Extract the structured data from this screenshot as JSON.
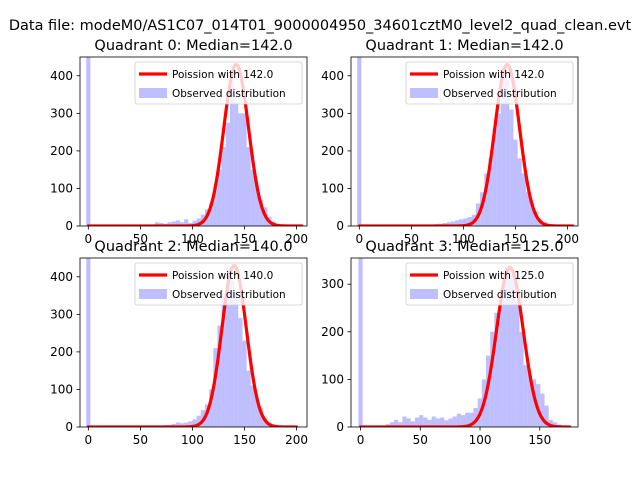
{
  "figure_title": "Data file: modeM0/AS1C07_014T01_9000004950_34601cztM0_level2_quad_clean.evt",
  "colors": {
    "curve": "#ff0000",
    "bars": "#7f7fff",
    "edge_bar": "#7f7fff"
  },
  "chart_data": [
    {
      "type": "bar",
      "title": "Quadrant 0: Median=142.0",
      "xlim": [
        -8,
        210
      ],
      "ylim": [
        0,
        450
      ],
      "xticks": [
        0,
        50,
        100,
        150,
        200
      ],
      "yticks": [
        0,
        100,
        200,
        300,
        400
      ],
      "xlabel": "",
      "ylabel": "",
      "legend": {
        "location": "upper-right",
        "curve_label": "Poission with 142.0",
        "bars_label": "Observed distribution"
      },
      "poisson_mean": 142,
      "poisson_peak": 430,
      "poisson_sigma": 11.9,
      "curve_range": [
        0,
        205
      ],
      "zero_bin_value": 450,
      "bin_width": 4,
      "bins": [
        [
          64,
          10
        ],
        [
          68,
          8
        ],
        [
          72,
          6
        ],
        [
          76,
          10
        ],
        [
          80,
          12
        ],
        [
          84,
          15
        ],
        [
          88,
          10
        ],
        [
          92,
          18
        ],
        [
          96,
          8
        ],
        [
          100,
          14
        ],
        [
          104,
          20
        ],
        [
          108,
          30
        ],
        [
          112,
          45
        ],
        [
          116,
          60
        ],
        [
          120,
          100
        ],
        [
          124,
          150
        ],
        [
          128,
          210
        ],
        [
          132,
          275
        ],
        [
          136,
          400
        ],
        [
          140,
          330
        ],
        [
          144,
          300
        ],
        [
          148,
          300
        ],
        [
          152,
          210
        ],
        [
          156,
          150
        ],
        [
          160,
          110
        ],
        [
          164,
          70
        ],
        [
          168,
          50
        ],
        [
          172,
          25
        ],
        [
          176,
          12
        ],
        [
          180,
          6
        ],
        [
          184,
          4
        ],
        [
          188,
          2
        ],
        [
          192,
          1
        ]
      ]
    },
    {
      "type": "bar",
      "title": "Quadrant 1: Median=142.0",
      "xlim": [
        -8,
        210
      ],
      "ylim": [
        0,
        450
      ],
      "xticks": [
        0,
        50,
        100,
        150,
        200
      ],
      "yticks": [
        0,
        100,
        200,
        300,
        400
      ],
      "xlabel": "",
      "ylabel": "",
      "legend": {
        "location": "upper-right",
        "curve_label": "Poission with 142.0",
        "bars_label": "Observed distribution"
      },
      "poisson_mean": 142,
      "poisson_peak": 430,
      "poisson_sigma": 11.9,
      "curve_range": [
        0,
        205
      ],
      "zero_bin_value": 450,
      "bin_width": 4,
      "bins": [
        [
          72,
          5
        ],
        [
          76,
          6
        ],
        [
          80,
          8
        ],
        [
          84,
          10
        ],
        [
          88,
          12
        ],
        [
          92,
          15
        ],
        [
          96,
          18
        ],
        [
          100,
          20
        ],
        [
          104,
          24
        ],
        [
          108,
          30
        ],
        [
          112,
          60
        ],
        [
          116,
          90
        ],
        [
          120,
          140
        ],
        [
          124,
          180
        ],
        [
          128,
          260
        ],
        [
          132,
          300
        ],
        [
          136,
          420
        ],
        [
          140,
          390
        ],
        [
          144,
          310
        ],
        [
          148,
          230
        ],
        [
          152,
          180
        ],
        [
          156,
          140
        ],
        [
          160,
          90
        ],
        [
          164,
          60
        ],
        [
          168,
          40
        ],
        [
          172,
          20
        ],
        [
          176,
          10
        ],
        [
          180,
          5
        ],
        [
          184,
          3
        ],
        [
          188,
          1
        ]
      ]
    },
    {
      "type": "bar",
      "title": "Quadrant 2: Median=140.0",
      "xlim": [
        -8,
        210
      ],
      "ylim": [
        0,
        450
      ],
      "xticks": [
        0,
        50,
        100,
        150,
        200
      ],
      "yticks": [
        0,
        100,
        200,
        300,
        400
      ],
      "xlabel": "",
      "ylabel": "",
      "legend": {
        "location": "upper-right",
        "curve_label": "Poission with 140.0",
        "bars_label": "Observed distribution"
      },
      "poisson_mean": 140,
      "poisson_peak": 430,
      "poisson_sigma": 11.8,
      "curve_range": [
        0,
        200
      ],
      "zero_bin_value": 450,
      "bin_width": 4,
      "bins": [
        [
          60,
          3
        ],
        [
          64,
          3
        ],
        [
          68,
          4
        ],
        [
          72,
          5
        ],
        [
          76,
          6
        ],
        [
          80,
          8
        ],
        [
          84,
          12
        ],
        [
          88,
          10
        ],
        [
          92,
          12
        ],
        [
          96,
          15
        ],
        [
          100,
          20
        ],
        [
          104,
          30
        ],
        [
          108,
          45
        ],
        [
          112,
          60
        ],
        [
          116,
          100
        ],
        [
          120,
          210
        ],
        [
          124,
          270
        ],
        [
          128,
          350
        ],
        [
          132,
          420
        ],
        [
          136,
          390
        ],
        [
          140,
          360
        ],
        [
          144,
          290
        ],
        [
          148,
          230
        ],
        [
          152,
          150
        ],
        [
          156,
          110
        ],
        [
          160,
          75
        ],
        [
          164,
          50
        ],
        [
          168,
          25
        ],
        [
          172,
          12
        ],
        [
          176,
          5
        ],
        [
          180,
          2
        ]
      ]
    },
    {
      "type": "bar",
      "title": "Quadrant 3: Median=125.0",
      "xlim": [
        -8,
        182
      ],
      "ylim": [
        0,
        355
      ],
      "xticks": [
        0,
        50,
        100,
        150
      ],
      "yticks": [
        0,
        100,
        200,
        300
      ],
      "xlabel": "",
      "ylabel": "",
      "legend": {
        "location": "upper-right",
        "curve_label": "Poission with 125.0",
        "bars_label": "Observed distribution"
      },
      "poisson_mean": 125,
      "poisson_peak": 335,
      "poisson_sigma": 11.2,
      "curve_range": [
        0,
        175
      ],
      "zero_bin_value": 355,
      "bin_width": 3.5,
      "bins": [
        [
          21,
          6
        ],
        [
          24.5,
          10
        ],
        [
          28,
          15
        ],
        [
          31.5,
          10
        ],
        [
          35,
          22
        ],
        [
          38.5,
          18
        ],
        [
          42,
          12
        ],
        [
          45.5,
          20
        ],
        [
          49,
          25
        ],
        [
          52.5,
          20
        ],
        [
          56,
          15
        ],
        [
          59.5,
          22
        ],
        [
          63,
          18
        ],
        [
          66.5,
          20
        ],
        [
          70,
          14
        ],
        [
          73.5,
          18
        ],
        [
          77,
          22
        ],
        [
          80.5,
          28
        ],
        [
          84,
          25
        ],
        [
          87.5,
          30
        ],
        [
          91,
          30
        ],
        [
          94.5,
          40
        ],
        [
          98,
          60
        ],
        [
          101.5,
          100
        ],
        [
          105,
          150
        ],
        [
          108.5,
          200
        ],
        [
          112,
          240
        ],
        [
          115.5,
          290
        ],
        [
          119,
          330
        ],
        [
          122.5,
          340
        ],
        [
          126,
          320
        ],
        [
          129.5,
          260
        ],
        [
          133,
          200
        ],
        [
          136.5,
          130
        ],
        [
          140,
          110
        ],
        [
          143.5,
          100
        ],
        [
          147,
          90
        ],
        [
          150.5,
          70
        ],
        [
          154,
          45
        ],
        [
          157.5,
          15
        ],
        [
          161,
          10
        ],
        [
          164.5,
          5
        ],
        [
          168,
          2
        ]
      ]
    }
  ]
}
